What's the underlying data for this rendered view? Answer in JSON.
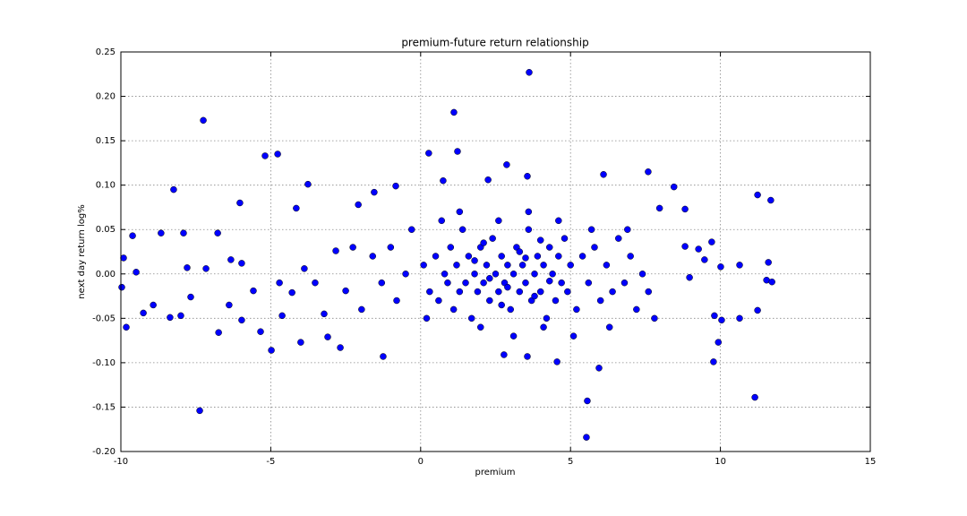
{
  "chart_data": {
    "type": "scatter",
    "title": "premium-future return relationship",
    "x_label": "premium",
    "y_label": "next day return log%",
    "color": "#0000ff",
    "xlim": [
      -10,
      15
    ],
    "ylim": [
      -0.2,
      0.25
    ],
    "xticks": [
      -10,
      -5,
      0,
      5,
      10,
      15
    ],
    "yticks": [
      {
        "value": -0.2,
        "label": "-0.20"
      },
      -0.15,
      {
        "value": -0.1,
        "label": "-0.10"
      },
      -0.05,
      {
        "value": 0,
        "label": "0.00"
      },
      0.05,
      {
        "value": 0.1,
        "label": "0.10"
      },
      0.15,
      {
        "value": 0.2,
        "label": "0.20"
      },
      0.25
    ],
    "grid": true,
    "x": [
      3.62,
      1.11,
      -7.25,
      1.23,
      0.27,
      -5.19,
      -4.77,
      2.87,
      7.59,
      6.1,
      3.56,
      0.75,
      2.25,
      -8.24,
      -3.76,
      8.45,
      -0.83,
      11.68,
      11.24,
      7.97,
      -6.03,
      -4.15,
      -7.37,
      5.53,
      5.56,
      11.15,
      5.95,
      9.77,
      4.55,
      -9.82,
      -6.74,
      -4.98,
      -2.68,
      -1.25,
      2.78,
      3.56,
      9.93,
      -5.34,
      -4.0,
      -3.1,
      11.24,
      -9.97,
      -9.61,
      -8.66,
      -7.91,
      -6.77,
      -9.91,
      -9.49,
      -9.25,
      -8.92,
      -8.36,
      -8.0,
      -7.67,
      -7.79,
      -7.16,
      -6.33,
      -5.97,
      -6.39,
      -5.97,
      -5.58,
      -4.71,
      -4.62,
      -4.29,
      -3.88,
      -3.52,
      -3.22,
      -2.83,
      -2.5,
      -2.26,
      -2.08,
      -1.97,
      -1.55,
      10.01,
      10.64,
      11.54,
      11.72,
      11.6,
      9.8,
      10.04,
      10.64,
      9.47,
      9.27,
      8.97,
      8.82,
      8.82,
      9.71,
      0.1,
      0.3,
      0.5,
      0.6,
      0.8,
      0.9,
      1.0,
      1.1,
      1.2,
      1.3,
      1.4,
      1.5,
      1.6,
      1.7,
      1.8,
      1.9,
      2.0,
      2.1,
      2.2,
      2.3,
      2.4,
      2.5,
      2.6,
      2.7,
      2.8,
      2.9,
      3.0,
      3.1,
      3.2,
      3.3,
      3.4,
      3.5,
      3.6,
      3.7,
      3.8,
      3.9,
      4.0,
      4.1,
      4.2,
      4.3,
      4.4,
      4.5,
      4.6,
      4.7,
      4.8,
      4.9,
      5.0,
      5.2,
      5.4,
      5.6,
      5.8,
      6.0,
      6.2,
      6.4,
      6.6,
      6.8,
      7.0,
      7.2,
      7.4,
      7.6,
      -0.5,
      -0.8,
      -1.0,
      -1.3,
      -1.6,
      -0.3,
      0.2,
      0.7,
      1.3,
      2.0,
      2.6,
      3.1,
      3.6,
      4.1,
      4.6,
      5.1,
      5.7,
      6.3,
      6.9,
      7.8,
      1.8,
      2.3,
      2.9,
      3.3,
      3.8,
      4.3,
      2.1,
      2.7,
      3.5,
      4.0
    ],
    "y": [
      0.227,
      0.182,
      0.173,
      0.138,
      0.136,
      0.133,
      0.135,
      0.123,
      0.115,
      0.112,
      0.11,
      0.105,
      0.106,
      0.095,
      0.101,
      0.098,
      0.099,
      0.083,
      0.089,
      0.074,
      0.08,
      0.074,
      -0.154,
      -0.184,
      -0.143,
      -0.139,
      -0.106,
      -0.099,
      -0.099,
      -0.06,
      -0.066,
      -0.086,
      -0.083,
      -0.093,
      -0.091,
      -0.093,
      -0.077,
      -0.065,
      -0.077,
      -0.071,
      -0.041,
      -0.015,
      0.043,
      0.046,
      0.046,
      0.046,
      0.018,
      0.002,
      -0.044,
      -0.035,
      -0.049,
      -0.047,
      -0.026,
      0.007,
      0.006,
      0.016,
      0.012,
      -0.035,
      -0.052,
      -0.019,
      -0.01,
      -0.047,
      -0.021,
      0.006,
      -0.01,
      -0.045,
      0.026,
      -0.019,
      0.03,
      0.078,
      -0.04,
      0.092,
      0.008,
      0.01,
      -0.007,
      -0.009,
      0.013,
      -0.047,
      -0.052,
      -0.05,
      0.016,
      0.028,
      -0.004,
      0.031,
      0.073,
      0.036,
      0.01,
      -0.02,
      0.02,
      -0.03,
      0.0,
      -0.01,
      0.03,
      -0.04,
      0.01,
      -0.02,
      0.05,
      -0.01,
      0.02,
      -0.05,
      0.0,
      -0.02,
      0.03,
      -0.01,
      0.01,
      -0.03,
      0.04,
      0.0,
      -0.02,
      0.02,
      -0.01,
      0.01,
      -0.04,
      0.0,
      0.03,
      -0.02,
      0.01,
      -0.01,
      0.05,
      -0.03,
      0.0,
      0.02,
      -0.02,
      0.01,
      -0.05,
      0.03,
      0.0,
      -0.03,
      0.02,
      -0.01,
      0.04,
      -0.02,
      0.01,
      -0.04,
      0.02,
      -0.01,
      0.03,
      -0.03,
      0.01,
      -0.02,
      0.04,
      -0.01,
      0.02,
      -0.04,
      0.0,
      -0.02,
      0.0,
      -0.03,
      0.03,
      -0.01,
      0.02,
      0.05,
      -0.05,
      0.06,
      0.07,
      -0.06,
      0.06,
      -0.07,
      0.07,
      -0.06,
      0.06,
      -0.07,
      0.05,
      -0.06,
      0.05,
      -0.05,
      0.015,
      -0.005,
      -0.015,
      0.025,
      -0.025,
      -0.008,
      0.035,
      -0.035,
      0.018,
      0.038
    ]
  }
}
